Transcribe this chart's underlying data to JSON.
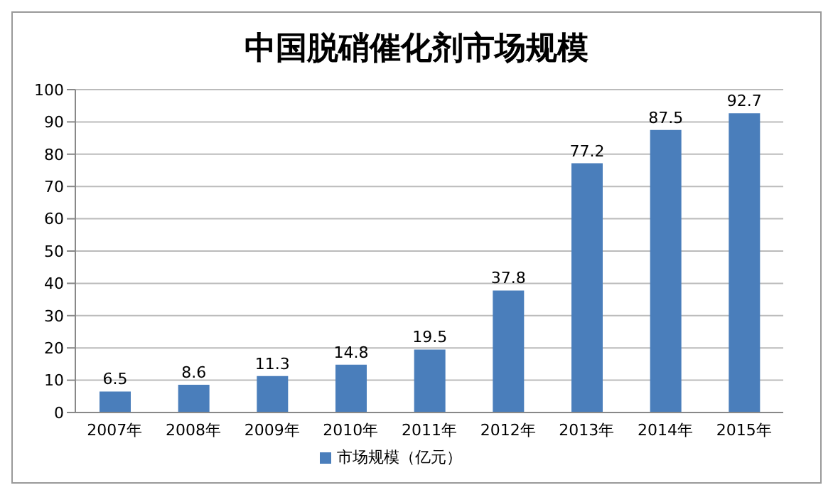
{
  "chart_data": {
    "type": "bar",
    "title": "中国脱硝催化剂市场规模",
    "categories": [
      "2007年",
      "2008年",
      "2009年",
      "2010年",
      "2011年",
      "2012年",
      "2013年",
      "2014年",
      "2015年"
    ],
    "series": [
      {
        "name": "市场规模（亿元）",
        "color": "#4a7ebb",
        "values": [
          6.5,
          8.6,
          11.3,
          14.8,
          19.5,
          37.8,
          77.2,
          87.5,
          92.7
        ]
      }
    ],
    "ylim": [
      0,
      100
    ],
    "yticks": [
      0,
      10,
      20,
      30,
      40,
      50,
      60,
      70,
      80,
      90,
      100
    ],
    "grid": "y",
    "legend": "bottom",
    "data_labels": true
  }
}
